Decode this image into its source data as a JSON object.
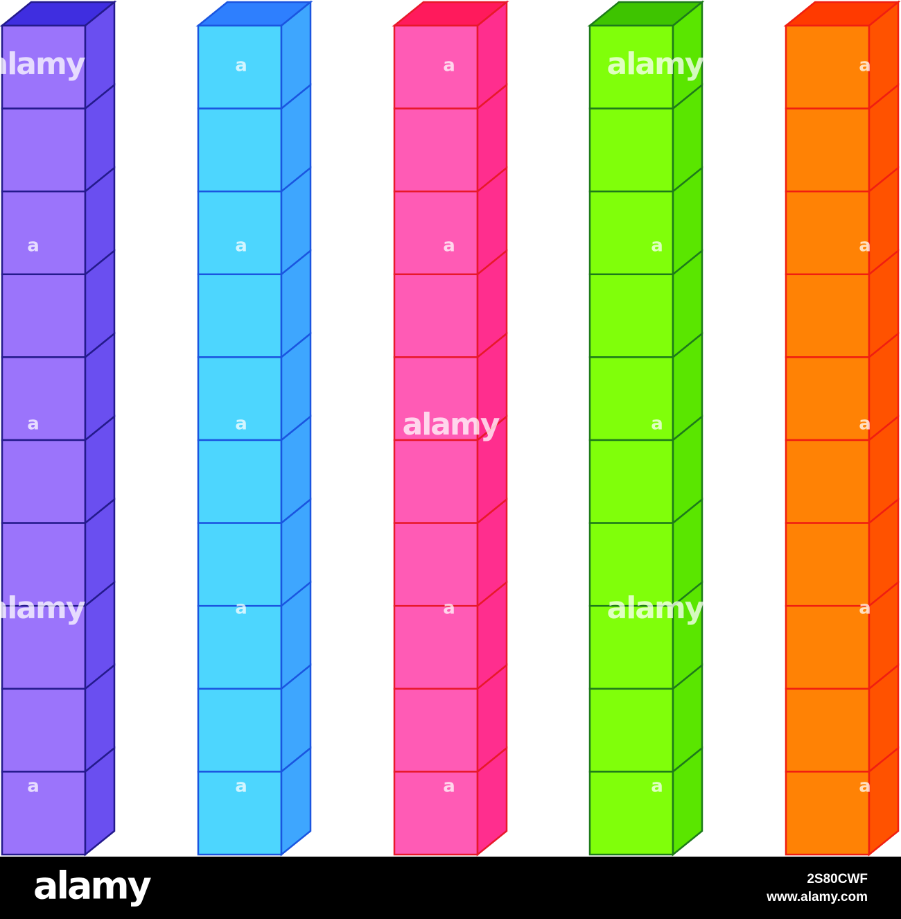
{
  "watermark": "alamy",
  "watermark_small": "a",
  "footer": {
    "logo": "alamy",
    "image_id": "2S80CWF",
    "url": "www.alamy.com"
  }
}
